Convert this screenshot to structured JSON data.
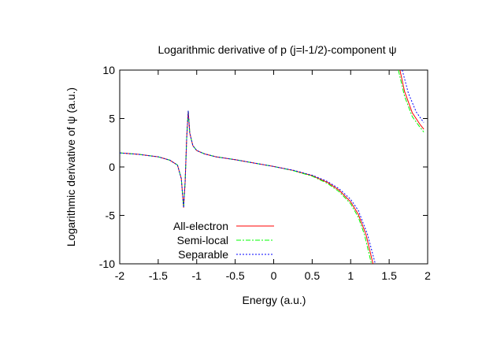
{
  "chart_data": {
    "type": "line",
    "title": "Logarithmic derivative of p (j=l-1/2)-component ψ",
    "xlabel": "Energy (a.u.)",
    "ylabel": "Logarithmic derivative of ψ (a.u.)",
    "xlim": [
      -2,
      2
    ],
    "ylim": [
      -10,
      10
    ],
    "xticks": [
      "-2",
      "-1.5",
      "-1",
      "-0.5",
      "0",
      "0.5",
      "1",
      "1.5",
      "2"
    ],
    "yticks": [
      "-10",
      "-5",
      "0",
      "5",
      "10"
    ],
    "grid": false,
    "legend_position": "bottom-left",
    "series": [
      {
        "name": "All-electron",
        "color": "#ff0000",
        "dash": "solid",
        "branches": [
          [
            [
              -2,
              1.45
            ],
            [
              -1.75,
              1.3
            ],
            [
              -1.5,
              1.05
            ],
            [
              -1.35,
              0.7
            ],
            [
              -1.25,
              0.2
            ],
            [
              -1.2,
              -1.2
            ],
            [
              -1.17,
              -4.2
            ],
            [
              -1.15,
              -1.5
            ],
            [
              -1.13,
              3.0
            ],
            [
              -1.11,
              5.8
            ],
            [
              -1.09,
              3.5
            ],
            [
              -1.05,
              2.2
            ],
            [
              -1.0,
              1.7
            ],
            [
              -0.9,
              1.35
            ],
            [
              -0.75,
              1.05
            ],
            [
              -0.5,
              0.75
            ],
            [
              -0.25,
              0.4
            ],
            [
              0,
              0.05
            ],
            [
              0.25,
              -0.35
            ],
            [
              0.5,
              -0.9
            ],
            [
              0.7,
              -1.6
            ],
            [
              0.85,
              -2.4
            ],
            [
              1.0,
              -3.6
            ],
            [
              1.1,
              -4.9
            ],
            [
              1.2,
              -7.0
            ],
            [
              1.29,
              -10
            ]
          ],
          [
            [
              1.64,
              10
            ],
            [
              1.7,
              7.8
            ],
            [
              1.8,
              5.6
            ],
            [
              1.9,
              4.4
            ],
            [
              1.95,
              3.9
            ]
          ]
        ]
      },
      {
        "name": "Semi-local",
        "color": "#00ff00",
        "dash": "dash-dot",
        "branches": [
          [
            [
              -2,
              1.45
            ],
            [
              -1.75,
              1.3
            ],
            [
              -1.5,
              1.05
            ],
            [
              -1.35,
              0.7
            ],
            [
              -1.25,
              0.2
            ],
            [
              -1.2,
              -1.2
            ],
            [
              -1.17,
              -4.2
            ],
            [
              -1.15,
              -1.5
            ],
            [
              -1.13,
              3.0
            ],
            [
              -1.11,
              5.8
            ],
            [
              -1.09,
              3.5
            ],
            [
              -1.05,
              2.2
            ],
            [
              -1.0,
              1.7
            ],
            [
              -0.9,
              1.35
            ],
            [
              -0.75,
              1.05
            ],
            [
              -0.5,
              0.75
            ],
            [
              -0.25,
              0.4
            ],
            [
              0,
              0.05
            ],
            [
              0.25,
              -0.37
            ],
            [
              0.5,
              -0.95
            ],
            [
              0.7,
              -1.7
            ],
            [
              0.85,
              -2.55
            ],
            [
              1.0,
              -3.8
            ],
            [
              1.1,
              -5.2
            ],
            [
              1.18,
              -7.0
            ],
            [
              1.27,
              -10
            ]
          ],
          [
            [
              1.62,
              10
            ],
            [
              1.7,
              7.3
            ],
            [
              1.8,
              5.2
            ],
            [
              1.9,
              4.1
            ],
            [
              1.95,
              3.6
            ]
          ]
        ]
      },
      {
        "name": "Separable",
        "color": "#0000ff",
        "dash": "dotted",
        "branches": [
          [
            [
              -2,
              1.45
            ],
            [
              -1.75,
              1.3
            ],
            [
              -1.5,
              1.05
            ],
            [
              -1.35,
              0.7
            ],
            [
              -1.25,
              0.2
            ],
            [
              -1.2,
              -1.2
            ],
            [
              -1.17,
              -4.2
            ],
            [
              -1.15,
              -1.5
            ],
            [
              -1.13,
              3.0
            ],
            [
              -1.11,
              5.8
            ],
            [
              -1.09,
              3.5
            ],
            [
              -1.05,
              2.2
            ],
            [
              -1.0,
              1.7
            ],
            [
              -0.9,
              1.35
            ],
            [
              -0.75,
              1.05
            ],
            [
              -0.5,
              0.75
            ],
            [
              -0.25,
              0.4
            ],
            [
              0,
              0.05
            ],
            [
              0.25,
              -0.33
            ],
            [
              0.5,
              -0.85
            ],
            [
              0.7,
              -1.5
            ],
            [
              0.85,
              -2.25
            ],
            [
              1.0,
              -3.35
            ],
            [
              1.1,
              -4.5
            ],
            [
              1.22,
              -7.0
            ],
            [
              1.32,
              -10
            ]
          ],
          [
            [
              1.67,
              10
            ],
            [
              1.75,
              7.6
            ],
            [
              1.85,
              5.7
            ],
            [
              1.92,
              4.9
            ],
            [
              1.95,
              4.6
            ]
          ]
        ]
      }
    ]
  }
}
